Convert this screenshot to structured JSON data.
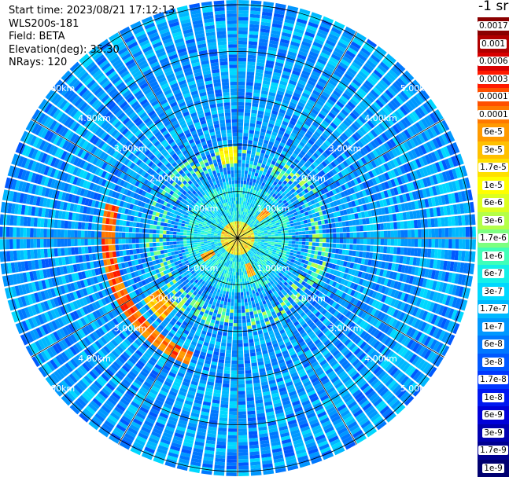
{
  "info": {
    "start_time": "Start time: 2023/08/21 17:12:13",
    "lidar": "WLS200s-181",
    "field": "Field: BETA",
    "elevation": "Elevation(deg): 35.30",
    "nrays": "NRays: 120"
  },
  "unit_label": "-1 sr",
  "chart_data": {
    "type": "heatmap",
    "projection": "polar (PPI scan)",
    "field": "BETA",
    "n_rays": 120,
    "range_rings_km": [
      1,
      2,
      3,
      4,
      5
    ],
    "range_ring_labels": [
      "1.00km",
      "2.00km",
      "3.00km",
      "4.00km",
      "5.00km"
    ],
    "max_range_km": 5.1,
    "scale": "log",
    "legend": [
      {
        "label": "0.0017",
        "color": "#8a0000"
      },
      {
        "label": "0.001",
        "color": "#b00000"
      },
      {
        "label": "0.0006",
        "color": "#d80000"
      },
      {
        "label": "0.0003",
        "color": "#ff1a00"
      },
      {
        "label": "0.00017",
        "color": "#ff5000"
      },
      {
        "label": "0.0001",
        "color": "#ff7800"
      },
      {
        "label": "6e-5",
        "color": "#ff9a00"
      },
      {
        "label": "3e-5",
        "color": "#ffc000"
      },
      {
        "label": "1.7e-5",
        "color": "#ffe000"
      },
      {
        "label": "1e-5",
        "color": "#ffff00"
      },
      {
        "label": "6e-6",
        "color": "#dcff20"
      },
      {
        "label": "3e-6",
        "color": "#b4ff48"
      },
      {
        "label": "1.7e-6",
        "color": "#7cff80"
      },
      {
        "label": "1e-6",
        "color": "#40ffb8"
      },
      {
        "label": "6e-7",
        "color": "#14f0e8"
      },
      {
        "label": "3e-7",
        "color": "#00d8ff"
      },
      {
        "label": "1.7e-7",
        "color": "#00b8ff"
      },
      {
        "label": "1e-7",
        "color": "#0098ff"
      },
      {
        "label": "6e-8",
        "color": "#0078ff"
      },
      {
        "label": "3e-8",
        "color": "#0058ff"
      },
      {
        "label": "1.7e-8",
        "color": "#0038ff"
      },
      {
        "label": "1e-8",
        "color": "#0018f0"
      },
      {
        "label": "6e-9",
        "color": "#0000d8"
      },
      {
        "label": "3e-9",
        "color": "#0000b0"
      },
      {
        "label": "1.7e-9",
        "color": "#000090"
      },
      {
        "label": "1e-9",
        "color": "#000070"
      }
    ]
  }
}
